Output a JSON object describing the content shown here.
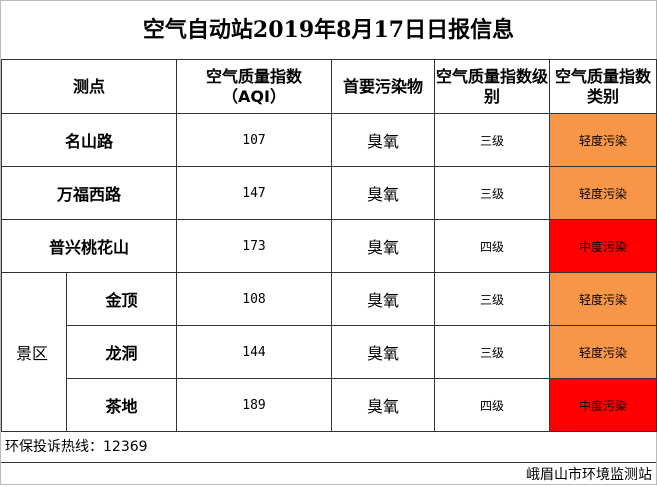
{
  "header": {
    "title": "空气自动站2019年8月17日日报信息"
  },
  "table": {
    "columns": [
      "测点",
      "空气质量指数\n（AQI）",
      "首要污染物",
      "空气质量指数级别",
      "空气质量指数类别"
    ],
    "rows": [
      [
        "名山路",
        107,
        "臭氧",
        "三级",
        "轻度污染"
      ],
      [
        "万福西路",
        147,
        "臭氧",
        "三级",
        "轻度污染"
      ],
      [
        "普兴桃花山",
        173,
        "臭氧",
        "四级",
        "中度污染"
      ],
      [
        "金顶",
        108,
        "臭氧",
        "三级",
        "轻度污染"
      ],
      [
        "龙洞",
        144,
        "臭氧",
        "三级",
        "轻度污染"
      ],
      [
        "茶地",
        189,
        "臭氧",
        "四级",
        "中度污染"
      ]
    ],
    "groups": [
      {
        "label": "景区"
      }
    ]
  },
  "footer": {
    "hotline": "环保投诉热线：12369",
    "org": "峨眉山市环境监测站"
  }
}
